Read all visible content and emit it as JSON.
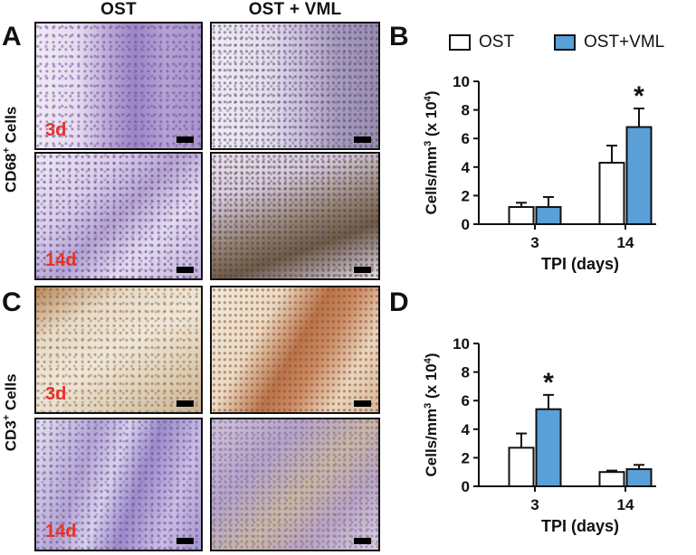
{
  "columns": {
    "ost": "OST",
    "ost_vml": "OST + VML"
  },
  "panels": {
    "a": "A",
    "b": "B",
    "c": "C",
    "d": "D"
  },
  "row_labels": {
    "cd68_prefix": "CD68",
    "cd68_sup": "+",
    "cd68_suffix": " Cells",
    "cd3_prefix": "CD3",
    "cd3_sup": "+",
    "cd3_suffix": " Cells"
  },
  "timepoints": {
    "d3": "3d",
    "d14": "14d"
  },
  "legend": {
    "ost": "OST",
    "ost_vml": "OST+VML"
  },
  "colors": {
    "ost_fill": "#ffffff",
    "ost_vml_fill": "#5aa0d8",
    "timepoint_label": "#e53227"
  },
  "chart_data": [
    {
      "panel": "B",
      "type": "bar",
      "categories": [
        "3",
        "14"
      ],
      "series": [
        {
          "name": "OST",
          "values": [
            1.2,
            4.3
          ],
          "errors": [
            0.3,
            1.2
          ]
        },
        {
          "name": "OST+VML",
          "values": [
            1.2,
            6.8
          ],
          "errors": [
            0.7,
            1.3
          ]
        }
      ],
      "significance": [
        {
          "category": "14",
          "series": "OST+VML",
          "marker": "*"
        }
      ],
      "xlabel": "TPI (days)",
      "ylabel": "Cells/mm3 (x 104)",
      "ylim": [
        0,
        10
      ],
      "yticks": [
        0,
        2,
        4,
        6,
        8,
        10
      ],
      "legend": "top"
    },
    {
      "panel": "D",
      "type": "bar",
      "categories": [
        "3",
        "14"
      ],
      "series": [
        {
          "name": "OST",
          "values": [
            2.7,
            1.0
          ],
          "errors": [
            1.0,
            0.1
          ]
        },
        {
          "name": "OST+VML",
          "values": [
            5.4,
            1.2
          ],
          "errors": [
            1.0,
            0.3
          ]
        }
      ],
      "significance": [
        {
          "category": "3",
          "series": "OST+VML",
          "marker": "*"
        }
      ],
      "xlabel": "TPI (days)",
      "ylabel": "Cells/mm3 (x 104)",
      "ylim": [
        0,
        10
      ],
      "yticks": [
        0,
        2,
        4,
        6,
        8,
        10
      ],
      "legend": "none"
    }
  ]
}
